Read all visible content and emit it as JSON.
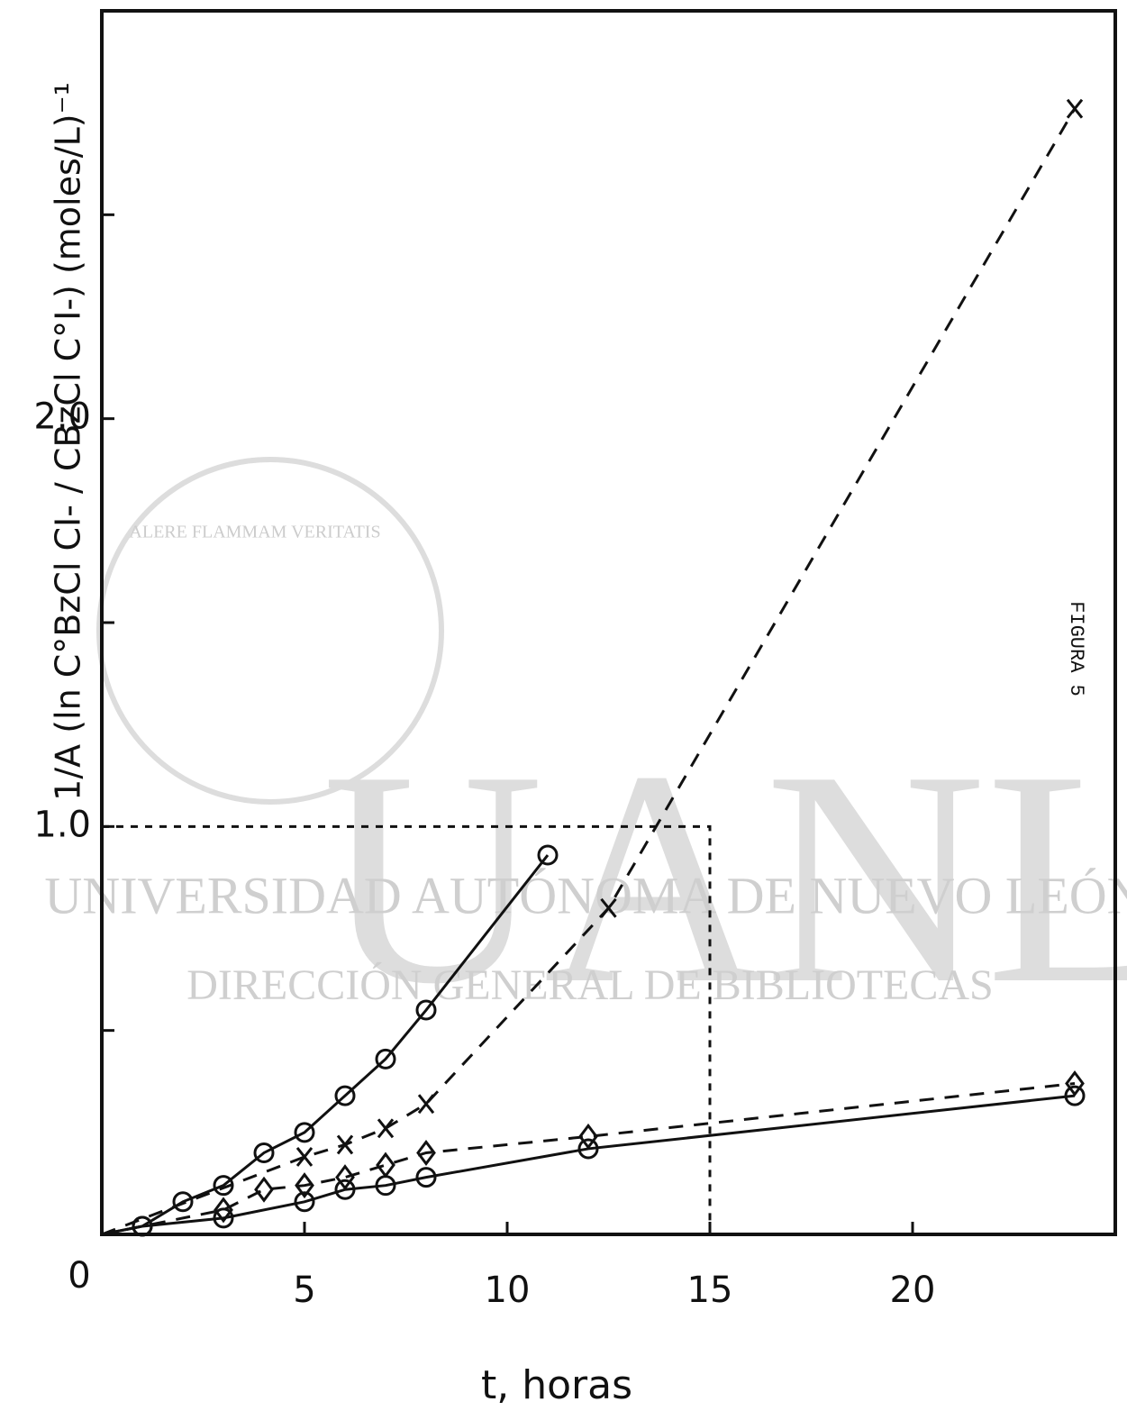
{
  "chart_data": {
    "type": "scatter",
    "x_label": "t, horas",
    "y_label": "1/A (ln C°BzCl CI- / CBzCl C°I-)  (moles/L)⁻¹",
    "side_label": "FIGURA 5",
    "watermark": {
      "big": "UANL",
      "line1": "UNIVERSIDAD AUTÓNOMA DE NUEVO LEÓN",
      "line2": "DIRECCIÓN GENERAL DE BIBLIOTECAS",
      "motto": "ALERE FLAMMAM VERITATIS"
    },
    "xlim": [
      0,
      25
    ],
    "ylim": [
      0,
      3
    ],
    "xticks": [
      0,
      5,
      10,
      15,
      20
    ],
    "yticks": [
      0,
      {
        "value": 1,
        "label": "1.0"
      },
      {
        "value": 2,
        "label": "2.0"
      }
    ],
    "yminor_ticks": [
      0.5,
      1.5,
      2.5
    ],
    "color": "#111111",
    "series": [
      {
        "marker": "circle",
        "line": "solid",
        "x": [
          1,
          2,
          3,
          4,
          5,
          6,
          7,
          8,
          11
        ],
        "values": [
          0.02,
          0.08,
          0.12,
          0.2,
          0.25,
          0.34,
          0.43,
          0.55,
          0.93
        ]
      },
      {
        "marker": "cross",
        "line": "dashed",
        "x": [
          5,
          6,
          7,
          8,
          12.5,
          24
        ],
        "values": [
          0.19,
          0.22,
          0.26,
          0.32,
          0.8,
          2.76
        ]
      },
      {
        "marker": "diamond",
        "line": "dashed",
        "x": [
          3,
          4,
          5,
          6,
          7,
          8,
          12,
          24
        ],
        "values": [
          0.06,
          0.11,
          0.12,
          0.14,
          0.17,
          0.2,
          0.24,
          0.37
        ]
      },
      {
        "marker": "circle",
        "line": "solid",
        "x": [
          1,
          3,
          5,
          6,
          7,
          8,
          12,
          24
        ],
        "values": [
          0.02,
          0.04,
          0.08,
          0.11,
          0.12,
          0.14,
          0.21,
          0.34
        ]
      }
    ],
    "reference": {
      "x": 15,
      "y": 1
    }
  }
}
